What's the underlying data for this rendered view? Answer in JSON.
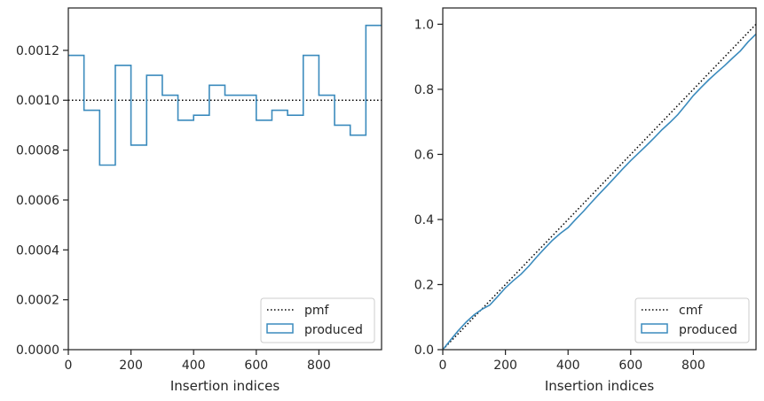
{
  "colors": {
    "series": "#3b8bbd",
    "reference": "#000000",
    "frame": "#262626",
    "legend_border": "#cccccc"
  },
  "chart_data": [
    {
      "type": "line",
      "step": true,
      "xlabel": "Insertion indices",
      "ylabel": "",
      "xlim": [
        0,
        1000
      ],
      "ylim": [
        0,
        0.00137
      ],
      "xticks": [
        0,
        200,
        400,
        600,
        800
      ],
      "yticks": [
        0.0,
        0.0002,
        0.0004,
        0.0006,
        0.0008,
        0.001,
        0.0012
      ],
      "xtick_labels": [
        "0",
        "200",
        "400",
        "600",
        "800"
      ],
      "ytick_labels": [
        "0.0000",
        "0.0002",
        "0.0004",
        "0.0006",
        "0.0008",
        "0.0010",
        "0.0012"
      ],
      "grid": false,
      "legend": "lower-right",
      "series": [
        {
          "name": "pmf",
          "style": "dotted",
          "x": [
            0,
            1000
          ],
          "y": [
            0.001,
            0.001
          ]
        },
        {
          "name": "produced",
          "style": "step",
          "bin_edges": [
            0,
            50,
            100,
            150,
            200,
            250,
            300,
            350,
            400,
            450,
            500,
            550,
            600,
            650,
            700,
            750,
            800,
            850,
            900,
            950,
            1000
          ],
          "values": [
            0.00118,
            0.00096,
            0.00074,
            0.00114,
            0.00082,
            0.0011,
            0.00102,
            0.00092,
            0.00094,
            0.00106,
            0.00102,
            0.00102,
            0.00092,
            0.00096,
            0.00094,
            0.00118,
            0.00102,
            0.0009,
            0.00086,
            0.0013
          ]
        }
      ]
    },
    {
      "type": "line",
      "xlabel": "Insertion indices",
      "ylabel": "",
      "xlim": [
        0,
        1000
      ],
      "ylim": [
        0,
        1.05
      ],
      "xticks": [
        0,
        200,
        400,
        600,
        800
      ],
      "yticks": [
        0.0,
        0.2,
        0.4,
        0.6,
        0.8,
        1.0
      ],
      "xtick_labels": [
        "0",
        "200",
        "400",
        "600",
        "800"
      ],
      "ytick_labels": [
        "0.0",
        "0.2",
        "0.4",
        "0.6",
        "0.8",
        "1.0"
      ],
      "grid": false,
      "legend": "lower-right",
      "series": [
        {
          "name": "cmf",
          "style": "dotted",
          "x": [
            0,
            1000
          ],
          "y": [
            0.0,
            1.0
          ]
        },
        {
          "name": "produced",
          "style": "solid",
          "x": [
            0,
            25,
            50,
            75,
            100,
            125,
            150,
            175,
            200,
            225,
            250,
            275,
            300,
            325,
            350,
            375,
            400,
            425,
            450,
            475,
            500,
            525,
            550,
            575,
            600,
            625,
            650,
            675,
            700,
            725,
            750,
            775,
            800,
            825,
            850,
            875,
            900,
            925,
            950,
            975,
            1000
          ],
          "y": [
            0.0,
            0.03,
            0.059,
            0.085,
            0.107,
            0.124,
            0.137,
            0.163,
            0.19,
            0.212,
            0.232,
            0.257,
            0.285,
            0.311,
            0.336,
            0.357,
            0.375,
            0.401,
            0.426,
            0.453,
            0.479,
            0.504,
            0.53,
            0.556,
            0.581,
            0.604,
            0.627,
            0.651,
            0.676,
            0.698,
            0.722,
            0.751,
            0.781,
            0.806,
            0.83,
            0.852,
            0.873,
            0.896,
            0.918,
            0.946,
            0.97
          ]
        }
      ]
    }
  ]
}
